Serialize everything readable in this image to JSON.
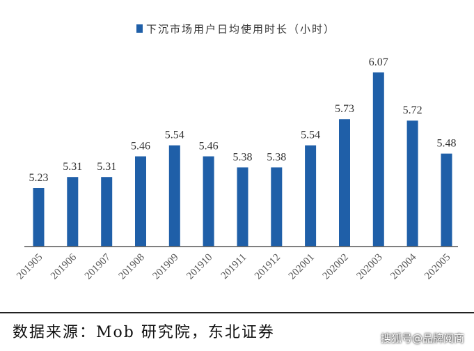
{
  "chart_data": {
    "type": "bar",
    "categories": [
      "201905",
      "201906",
      "201907",
      "201908",
      "201909",
      "201910",
      "201911",
      "201912",
      "202001",
      "202002",
      "202003",
      "202004",
      "202005"
    ],
    "series": [
      {
        "name": "下沉市场用户日均使用时长（小时）",
        "values": [
          5.23,
          5.31,
          5.31,
          5.46,
          5.54,
          5.46,
          5.38,
          5.38,
          5.54,
          5.73,
          6.07,
          5.72,
          5.48
        ],
        "color": "#1f5fa8"
      }
    ],
    "value_labels": [
      "5.23",
      "5.31",
      "5.31",
      "5.46",
      "5.54",
      "5.46",
      "5.38",
      "5.38",
      "5.54",
      "5.73",
      "6.07",
      "5.72",
      "5.48"
    ],
    "legend_position": "top-center",
    "grid": false,
    "x_tick_rotation_deg": -45
  },
  "source": "数据来源：Mob 研究院，东北证券",
  "watermark": "搜狐号@品牌阅商"
}
